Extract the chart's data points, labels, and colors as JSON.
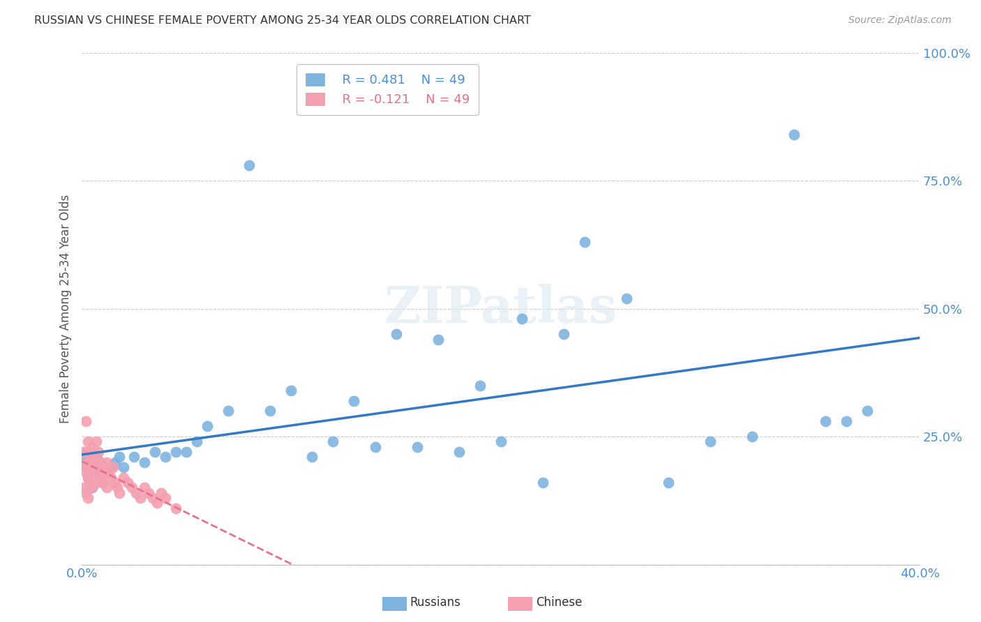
{
  "title": "RUSSIAN VS CHINESE FEMALE POVERTY AMONG 25-34 YEAR OLDS CORRELATION CHART",
  "source": "Source: ZipAtlas.com",
  "ylabel": "Female Poverty Among 25-34 Year Olds",
  "xlim": [
    0.0,
    0.4
  ],
  "ylim": [
    0.0,
    1.0
  ],
  "xticks": [
    0.0,
    0.08,
    0.16,
    0.24,
    0.32,
    0.4
  ],
  "xticklabels": [
    "0.0%",
    "",
    "",
    "",
    "",
    "40.0%"
  ],
  "yticks_right": [
    0.0,
    0.25,
    0.5,
    0.75,
    1.0
  ],
  "yticklabels_right": [
    "",
    "25.0%",
    "50.0%",
    "75.0%",
    "100.0%"
  ],
  "russian_color": "#7eb3e0",
  "chinese_color": "#f4a0b0",
  "trendline_russian_color": "#3478c8",
  "trendline_chinese_color": "#e87090",
  "legend_R_russian": "R = 0.481",
  "legend_N_russian": "N = 49",
  "legend_R_chinese": "R = -0.121",
  "legend_N_chinese": "N = 49",
  "watermark": "ZIPatlas",
  "russians_x": [
    0.001,
    0.002,
    0.003,
    0.004,
    0.005,
    0.006,
    0.007,
    0.008,
    0.009,
    0.01,
    0.012,
    0.014,
    0.016,
    0.018,
    0.02,
    0.025,
    0.03,
    0.035,
    0.04,
    0.045,
    0.05,
    0.055,
    0.06,
    0.07,
    0.08,
    0.09,
    0.1,
    0.11,
    0.12,
    0.13,
    0.14,
    0.15,
    0.16,
    0.17,
    0.18,
    0.19,
    0.2,
    0.21,
    0.22,
    0.23,
    0.24,
    0.26,
    0.28,
    0.3,
    0.32,
    0.34,
    0.355,
    0.365,
    0.375
  ],
  "russians_y": [
    0.19,
    0.21,
    0.17,
    0.2,
    0.15,
    0.19,
    0.21,
    0.18,
    0.2,
    0.16,
    0.18,
    0.19,
    0.2,
    0.21,
    0.19,
    0.21,
    0.2,
    0.22,
    0.21,
    0.22,
    0.22,
    0.24,
    0.27,
    0.3,
    0.78,
    0.3,
    0.34,
    0.21,
    0.24,
    0.32,
    0.23,
    0.45,
    0.23,
    0.44,
    0.22,
    0.35,
    0.24,
    0.48,
    0.16,
    0.45,
    0.63,
    0.52,
    0.16,
    0.24,
    0.25,
    0.84,
    0.28,
    0.28,
    0.3
  ],
  "chinese_x": [
    0.001,
    0.001,
    0.001,
    0.002,
    0.002,
    0.002,
    0.002,
    0.003,
    0.003,
    0.003,
    0.003,
    0.004,
    0.004,
    0.004,
    0.005,
    0.005,
    0.005,
    0.006,
    0.006,
    0.007,
    0.007,
    0.007,
    0.008,
    0.008,
    0.009,
    0.009,
    0.01,
    0.01,
    0.011,
    0.012,
    0.012,
    0.013,
    0.014,
    0.015,
    0.016,
    0.017,
    0.018,
    0.02,
    0.022,
    0.024,
    0.026,
    0.028,
    0.03,
    0.032,
    0.034,
    0.036,
    0.038,
    0.04,
    0.045
  ],
  "chinese_y": [
    0.19,
    0.22,
    0.15,
    0.28,
    0.18,
    0.22,
    0.14,
    0.2,
    0.17,
    0.24,
    0.13,
    0.21,
    0.16,
    0.22,
    0.19,
    0.15,
    0.23,
    0.18,
    0.21,
    0.2,
    0.24,
    0.16,
    0.19,
    0.22,
    0.17,
    0.2,
    0.19,
    0.16,
    0.18,
    0.2,
    0.15,
    0.18,
    0.17,
    0.19,
    0.16,
    0.15,
    0.14,
    0.17,
    0.16,
    0.15,
    0.14,
    0.13,
    0.15,
    0.14,
    0.13,
    0.12,
    0.14,
    0.13,
    0.11
  ]
}
